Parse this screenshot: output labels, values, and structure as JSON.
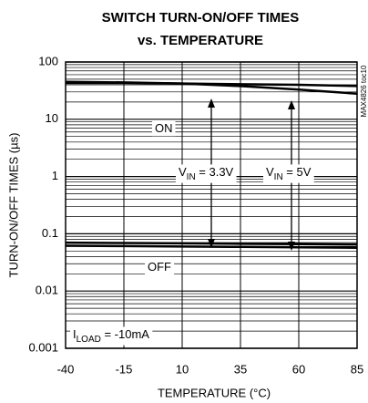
{
  "chart_data": {
    "type": "line",
    "title": [
      "SWITCH TURN-ON/OFF TIMES",
      "vs. TEMPERATURE"
    ],
    "xlabel": "TEMPERATURE (°C)",
    "ylabel": "TURN-ON/OFF TIMES (µs)",
    "side_note": "MAX4826 toc10",
    "x": [
      -40,
      -15,
      10,
      35,
      60,
      85
    ],
    "series": [
      {
        "color": "#000000",
        "values": [
          45,
          44,
          42,
          38,
          33,
          28
        ]
      },
      {
        "color": "#000000",
        "values": [
          43,
          43,
          42,
          41,
          40,
          38
        ]
      },
      {
        "color": "#000000",
        "values": [
          0.07,
          0.069,
          0.068,
          0.067,
          0.066,
          0.065
        ]
      },
      {
        "color": "#000000",
        "values": [
          0.062,
          0.061,
          0.06,
          0.059,
          0.058,
          0.057
        ]
      }
    ],
    "xlim": [
      -40,
      85
    ],
    "xticks": [
      -40,
      -15,
      10,
      35,
      60,
      85
    ],
    "ylim": [
      0.001,
      100
    ],
    "yticks": [
      0.001,
      0.01,
      0.1,
      1,
      10,
      100
    ],
    "log_y": true,
    "grid": true,
    "minor_grid": true,
    "annotations": [
      {
        "parts": [
          "ON"
        ]
      },
      {
        "parts": [
          "OFF"
        ]
      },
      {
        "parts": [
          "V",
          "IN",
          " = 3.3V"
        ]
      },
      {
        "parts": [
          "V",
          "IN",
          " = 5V"
        ]
      },
      {
        "parts": [
          "I",
          "LOAD",
          " = -10mA"
        ]
      }
    ]
  }
}
